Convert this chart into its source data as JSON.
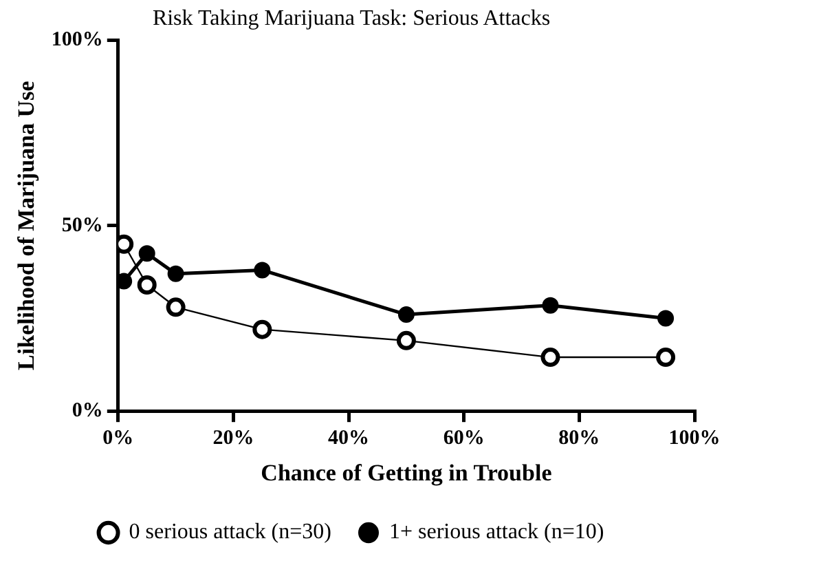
{
  "chart_data": {
    "type": "line",
    "title": "Risk Taking Marijuana Task: Serious Attacks",
    "xlabel": "Chance of Getting in Trouble",
    "ylabel": "Likelihood of Marijuana Use",
    "x": [
      1,
      5,
      10,
      25,
      50,
      75,
      95
    ],
    "series": [
      {
        "name": "0 serious attack (n=30)",
        "color": "#000000",
        "values": [
          45,
          34,
          28,
          22,
          19,
          14.5,
          14.5
        ]
      },
      {
        "name": "1+ serious attack (n=10)",
        "color": "#000000",
        "values": [
          35,
          42.5,
          37,
          38,
          26,
          28.5,
          25
        ]
      }
    ],
    "xlim": [
      0,
      100
    ],
    "ylim": [
      0,
      100
    ],
    "xticks": [
      {
        "value": 0,
        "label": "0%"
      },
      {
        "value": 20,
        "label": "20%"
      },
      {
        "value": 40,
        "label": "40%"
      },
      {
        "value": 60,
        "label": "60%"
      },
      {
        "value": 80,
        "label": "80%"
      },
      {
        "value": 100,
        "label": "100%"
      }
    ],
    "yticks": [
      {
        "value": 0,
        "label": "0%"
      },
      {
        "value": 50,
        "label": "50%"
      },
      {
        "value": 100,
        "label": "100%"
      }
    ],
    "grid": false,
    "legend": "bottom",
    "marker": "circle",
    "line_style": "solid"
  }
}
